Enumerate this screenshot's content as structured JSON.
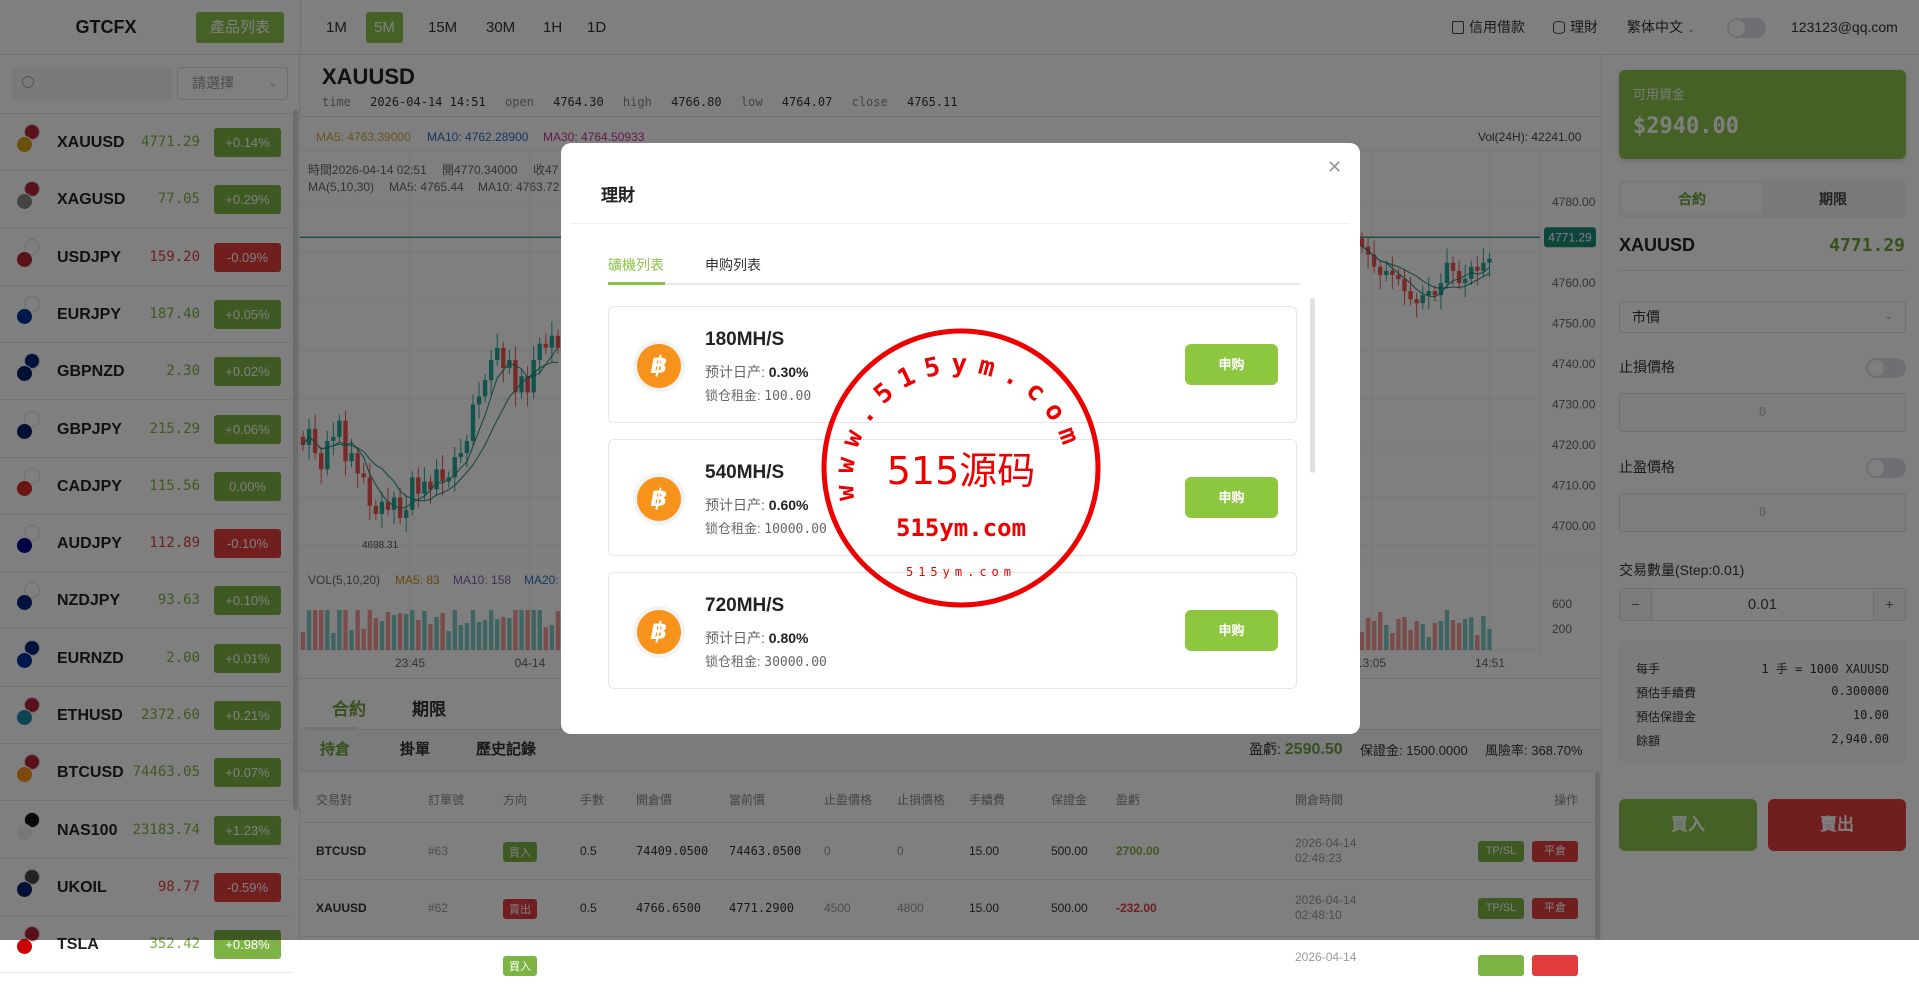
{
  "header": {
    "logo": "GTCFX",
    "product_list_btn": "產品列表",
    "timeframes": [
      "1M",
      "5M",
      "15M",
      "30M",
      "1H",
      "1D"
    ],
    "active_timeframe": "5M",
    "credit_loan": "信用借款",
    "finance": "理財",
    "language": "繁体中文",
    "email": "123123@qq.com"
  },
  "colors": {
    "brand_green": "#8bc34a",
    "up": "#7cb342",
    "down": "#e03c3c",
    "candle_up": "#26a69a",
    "candle_down": "#ef5350"
  },
  "sidebar": {
    "search_placeholder": "",
    "select_placeholder": "請選擇",
    "items": [
      {
        "symbol": "XAUUSD",
        "price": "4771.29",
        "change": "+0.14%",
        "up": true,
        "flags": [
          "#d4a017",
          "#b22234"
        ]
      },
      {
        "symbol": "XAGUSD",
        "price": "77.05",
        "change": "+0.29%",
        "up": true,
        "flags": [
          "#888",
          "#b22234"
        ]
      },
      {
        "symbol": "USDJPY",
        "price": "159.20",
        "change": "-0.09%",
        "up": false,
        "flags": [
          "#b22234",
          "#fff"
        ]
      },
      {
        "symbol": "EURJPY",
        "price": "187.40",
        "change": "+0.05%",
        "up": true,
        "flags": [
          "#003399",
          "#fff"
        ]
      },
      {
        "symbol": "GBPNZD",
        "price": "2.30",
        "change": "+0.02%",
        "up": true,
        "flags": [
          "#012169",
          "#00247d"
        ]
      },
      {
        "symbol": "GBPJPY",
        "price": "215.29",
        "change": "+0.06%",
        "up": true,
        "flags": [
          "#012169",
          "#fff"
        ]
      },
      {
        "symbol": "CADJPY",
        "price": "115.56",
        "change": "0.00%",
        "up": true,
        "flags": [
          "#d52b1e",
          "#fff"
        ]
      },
      {
        "symbol": "AUDJPY",
        "price": "112.89",
        "change": "-0.10%",
        "up": false,
        "flags": [
          "#00008b",
          "#fff"
        ]
      },
      {
        "symbol": "NZDJPY",
        "price": "93.63",
        "change": "+0.10%",
        "up": true,
        "flags": [
          "#00247d",
          "#fff"
        ]
      },
      {
        "symbol": "EURNZD",
        "price": "2.00",
        "change": "+0.01%",
        "up": true,
        "flags": [
          "#003399",
          "#00247d"
        ]
      },
      {
        "symbol": "ETHUSD",
        "price": "2372.60",
        "change": "+0.21%",
        "up": true,
        "flags": [
          "#1e88a8",
          "#b22234"
        ]
      },
      {
        "symbol": "BTCUSD",
        "price": "74463.05",
        "change": "+0.07%",
        "up": true,
        "flags": [
          "#f7931a",
          "#b22234"
        ]
      },
      {
        "symbol": "NAS100",
        "price": "23183.74",
        "change": "+1.23%",
        "up": true,
        "flags": [
          "#eee",
          "#111"
        ]
      },
      {
        "symbol": "UKOIL",
        "price": "98.77",
        "change": "-0.59%",
        "up": false,
        "flags": [
          "#012169",
          "#444"
        ]
      },
      {
        "symbol": "TSLA",
        "price": "352.42",
        "change": "+0.98%",
        "up": true,
        "flags": [
          "#cc0000",
          "#b22234"
        ]
      }
    ]
  },
  "main": {
    "symbol": "XAUUSD",
    "ohlc": {
      "time_label": "time",
      "time": "2026-04-14 14:51",
      "open_label": "open",
      "open": "4764.30",
      "high_label": "high",
      "high": "4766.80",
      "low_label": "low",
      "low": "4764.07",
      "close_label": "close",
      "close": "4765.11"
    },
    "ma_line": {
      "ma5": "MA5: 4763.39000",
      "ma10": "MA10: 4762.28900",
      "ma30": "MA30: 4764.50933",
      "vol24h": "Vol(24H): 42241.00"
    },
    "hover_info": {
      "line1a": "時間2026-04-14 02:51",
      "line1b": "開4770.34000",
      "line1c": "收47",
      "line2a": "MA(5,10,30)",
      "line2b": "MA5: 4765.44",
      "line2c": "MA10: 4763.72"
    },
    "chart_data": {
      "type": "candlestick",
      "price_ticks": [
        "4780.00",
        "4760.00",
        "4750.00",
        "4740.00",
        "4730.00",
        "4720.00",
        "4710.00",
        "4700.00"
      ],
      "last_price": "4771.29",
      "low_marker": "4698.31",
      "time_ticks": [
        "23:45",
        "04-14",
        "13:05",
        "14:51"
      ],
      "closes_left": [
        4720,
        4724,
        4718,
        4714,
        4721,
        4722,
        4726,
        4716,
        4718,
        4713,
        4712,
        4705,
        4703,
        4706,
        4704,
        4707,
        4702,
        4704,
        4712,
        4708,
        4711,
        4709,
        4714,
        4711,
        4712,
        4717,
        4718,
        4721,
        4730,
        4732,
        4736,
        4741,
        4744,
        4739,
        4741,
        4733,
        4737,
        4733,
        4741,
        4745,
        4744,
        4747,
        4744
      ],
      "closes_right": [
        4769,
        4767,
        4764,
        4762,
        4763,
        4762,
        4761,
        4758,
        4756,
        4755,
        4757,
        4758,
        4757,
        4760,
        4765,
        4763,
        4760,
        4761,
        4764,
        4763,
        4765,
        4766
      ],
      "volume_label": "VOL(5,10,20)",
      "vol_ma5": "MA5: 83",
      "vol_ma10": "MA10: 158",
      "vol_ma20": "MA20:",
      "volume_ticks": [
        "600",
        "200"
      ]
    },
    "bottom_tabs": [
      "合約",
      "期限"
    ],
    "sub_tabs": [
      "持倉",
      "掛單",
      "歷史記錄"
    ],
    "summary": {
      "pnl_label": "盈虧:",
      "pnl": "2590.50",
      "margin": "保證金: 1500.0000",
      "risk": "風險率: 368.70%"
    },
    "columns": [
      "交易對",
      "訂單號",
      "方向",
      "手數",
      "開倉價",
      "當前價",
      "止盈價格",
      "止損價格",
      "手續費",
      "保證金",
      "盈虧",
      "開倉時間",
      "操作"
    ],
    "rows": [
      {
        "pair": "BTCUSD",
        "order": "#63",
        "dir": "買入",
        "buy": true,
        "lots": "0.5",
        "open": "74409.0500",
        "current": "74463.0500",
        "tp": "0",
        "sl": "0",
        "fee": "15.00",
        "margin": "500.00",
        "pnl": "2700.00",
        "date": "2026-04-14",
        "time": "02:48:23",
        "tpsl": "TP/SL",
        "close": "平倉"
      },
      {
        "pair": "XAUUSD",
        "order": "#62",
        "dir": "賣出",
        "buy": false,
        "lots": "0.5",
        "open": "4766.6500",
        "current": "4771.2900",
        "tp": "4500",
        "sl": "4800",
        "fee": "15.00",
        "margin": "500.00",
        "pnl": "-232.00",
        "date": "2026-04-14",
        "time": "02:48:10",
        "tpsl": "TP/SL",
        "close": "平倉"
      },
      {
        "pair": "",
        "order": "",
        "dir": "買入",
        "buy": true,
        "lots": "",
        "open": "",
        "current": "",
        "tp": "",
        "sl": "",
        "fee": "",
        "margin": "",
        "pnl": "",
        "date": "2026-04-14",
        "time": "",
        "tpsl": "",
        "close": ""
      }
    ]
  },
  "right": {
    "fund_label": "可用資金",
    "fund_value": "$2940.00",
    "tabs": [
      "合約",
      "期限"
    ],
    "symbol": "XAUUSD",
    "price": "4771.29",
    "order_type": "市價",
    "stop_loss_label": "止損價格",
    "stop_loss_placeholder": "0",
    "take_profit_label": "止盈價格",
    "take_profit_placeholder": "0",
    "qty_label": "交易數量(Step:0.01)",
    "qty": "0.01",
    "info": [
      {
        "label": "每手",
        "value": "1 手 = 1000 XAUUSD"
      },
      {
        "label": "預估手續費",
        "value": "0.300000"
      },
      {
        "label": "預估保證金",
        "value": "10.00"
      },
      {
        "label": "餘額",
        "value": "2,940.00"
      }
    ],
    "buy": "買入",
    "sell": "賣出"
  },
  "modal": {
    "title": "理財",
    "tabs": [
      "礦機列表",
      "申购列表"
    ],
    "active_tab": "礦機列表",
    "cards": [
      {
        "name": "180MH/S",
        "daily_label": "预计日产:",
        "daily": "0.30%",
        "lock_label": "锁仓租金:",
        "lock": "100.00",
        "button": "申购"
      },
      {
        "name": "540MH/S",
        "daily_label": "预计日产:",
        "daily": "0.60%",
        "lock_label": "锁仓租金:",
        "lock": "10000.00",
        "button": "申购"
      },
      {
        "name": "720MH/S",
        "daily_label": "预计日产:",
        "daily": "0.80%",
        "lock_label": "锁仓租金:",
        "lock": "30000.00",
        "button": "申购"
      }
    ]
  },
  "watermark": {
    "ring_text": "www.515ym.com",
    "center": "515源码",
    "sub": "515ym.com",
    "bottom": "515ym.com"
  }
}
